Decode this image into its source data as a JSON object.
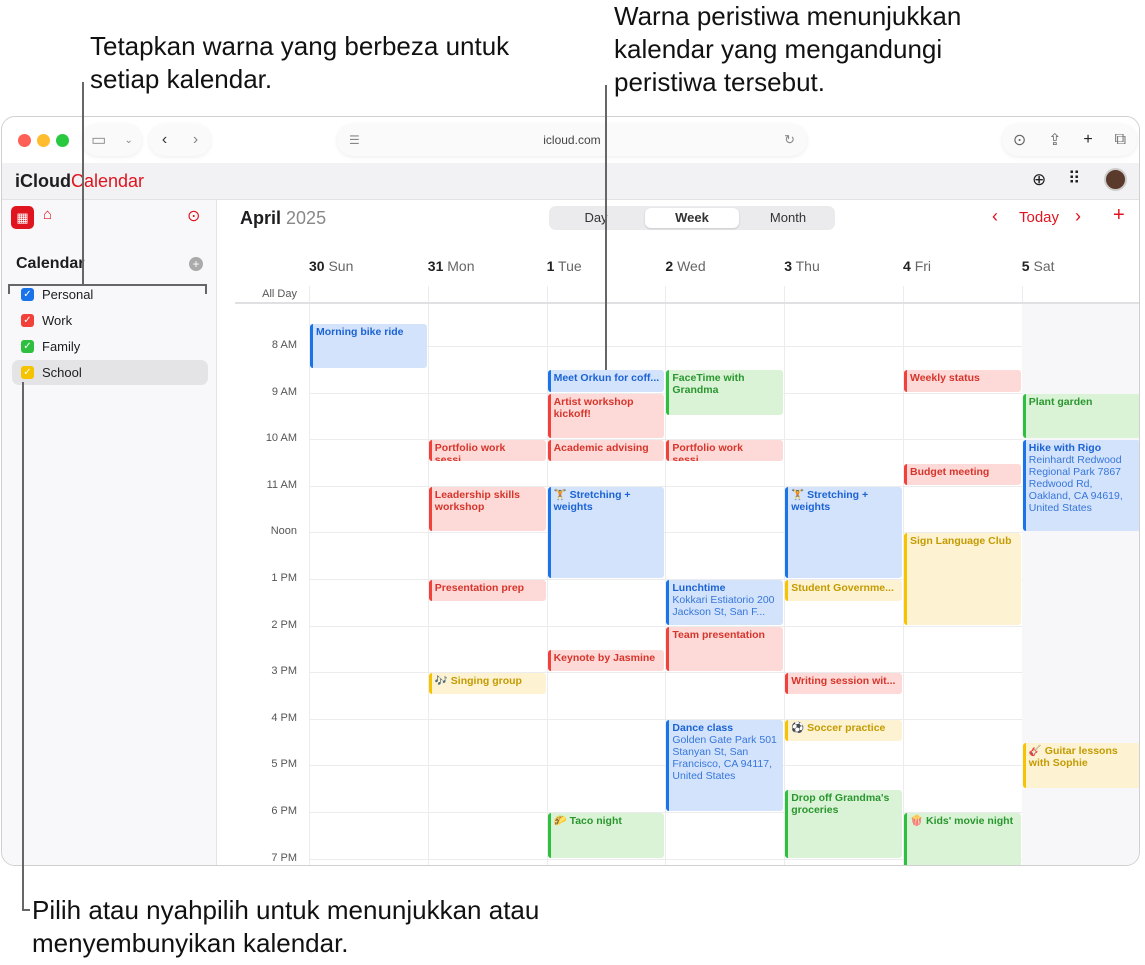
{
  "annotations": {
    "top_left": "Tetapkan warna yang berbeza untuk setiap kalendar.",
    "top_right": "Warna peristiwa menunjukkan kalendar yang mengandungi peristiwa tersebut.",
    "bottom": "Pilih atau nyahpilih untuk menunjukkan atau menyembunyikan kalendar."
  },
  "browser": {
    "url": "icloud.com"
  },
  "app": {
    "brand": "iCloud",
    "name": "Calendar"
  },
  "sidebar": {
    "heading": "Calendar",
    "calendars": [
      {
        "label": "Personal",
        "color": "#1a73e8",
        "checked": true
      },
      {
        "label": "Work",
        "color": "#f2413a",
        "checked": true
      },
      {
        "label": "Family",
        "color": "#2fbf3f",
        "checked": true
      },
      {
        "label": "School",
        "color": "#f5c300",
        "checked": true,
        "selected": true
      }
    ]
  },
  "header": {
    "month": "April",
    "year": "2025",
    "views": [
      "Day",
      "Week",
      "Month"
    ],
    "active_view": "Week",
    "today": "Today"
  },
  "days": [
    {
      "num": "30",
      "name": "Sun"
    },
    {
      "num": "31",
      "name": "Mon"
    },
    {
      "num": "1",
      "name": "Tue"
    },
    {
      "num": "2",
      "name": "Wed"
    },
    {
      "num": "3",
      "name": "Thu"
    },
    {
      "num": "4",
      "name": "Fri"
    },
    {
      "num": "5",
      "name": "Sat"
    }
  ],
  "all_day_label": "All Day",
  "hours": [
    "8 AM",
    "9 AM",
    "10 AM",
    "11 AM",
    "Noon",
    "1 PM",
    "2 PM",
    "3 PM",
    "4 PM",
    "5 PM",
    "6 PM",
    "7 PM"
  ],
  "colors": {
    "blue": {
      "fg": "#1b63d4",
      "bg": "#d3e3fc",
      "bar": "#1a73e8"
    },
    "red": {
      "fg": "#d6352b",
      "bg": "#fdd9d7",
      "bar": "#f2413a"
    },
    "green": {
      "fg": "#2a962e",
      "bg": "#daf3d7",
      "bar": "#2fbf3f"
    },
    "yellow": {
      "fg": "#c49b00",
      "bg": "#fdf2d2",
      "bar": "#f5c300"
    }
  },
  "events": [
    {
      "day": 0,
      "start": 7.5,
      "end": 8.5,
      "cal": "blue",
      "title": "Morning bike ride"
    },
    {
      "day": 2,
      "start": 8.5,
      "end": 9,
      "cal": "blue",
      "title": "Meet Orkun for coff..."
    },
    {
      "day": 2,
      "start": 9,
      "end": 10,
      "cal": "red",
      "title": "Artist workshop kickoff!"
    },
    {
      "day": 2,
      "start": 10,
      "end": 10.5,
      "cal": "red",
      "title": "Academic advising"
    },
    {
      "day": 1,
      "start": 10,
      "end": 10.5,
      "cal": "red",
      "title": "Portfolio work sessi..."
    },
    {
      "day": 3,
      "start": 10,
      "end": 10.5,
      "cal": "red",
      "title": "Portfolio work sessi..."
    },
    {
      "day": 3,
      "start": 8.5,
      "end": 9.5,
      "cal": "green",
      "title": "FaceTime with Grandma"
    },
    {
      "day": 5,
      "start": 8.5,
      "end": 9,
      "cal": "red",
      "title": "Weekly status"
    },
    {
      "day": 6,
      "start": 9,
      "end": 10,
      "cal": "green",
      "title": "Plant garden"
    },
    {
      "day": 6,
      "start": 10,
      "end": 12,
      "cal": "blue",
      "title": "Hike with Rigo",
      "sub": "Reinhardt Redwood Regional Park 7867 Redwood Rd, Oakland, CA 94619, United States"
    },
    {
      "day": 5,
      "start": 10.5,
      "end": 11,
      "cal": "red",
      "title": "Budget meeting"
    },
    {
      "day": 1,
      "start": 11,
      "end": 12,
      "cal": "red",
      "title": "Leadership skills workshop"
    },
    {
      "day": 2,
      "start": 11,
      "end": 13,
      "cal": "blue",
      "title": "🏋️ Stretching + weights"
    },
    {
      "day": 4,
      "start": 11,
      "end": 13,
      "cal": "blue",
      "title": "🏋️ Stretching + weights"
    },
    {
      "day": 5,
      "start": 12,
      "end": 14,
      "cal": "yellow",
      "title": "Sign Language Club"
    },
    {
      "day": 1,
      "start": 13,
      "end": 13.5,
      "cal": "red",
      "title": "Presentation prep"
    },
    {
      "day": 3,
      "start": 13,
      "end": 14,
      "cal": "blue",
      "title": "Lunchtime",
      "sub": "Kokkari Estiatorio 200 Jackson St, San F..."
    },
    {
      "day": 4,
      "start": 13,
      "end": 13.5,
      "cal": "yellow",
      "title": "Student Governme..."
    },
    {
      "day": 3,
      "start": 14,
      "end": 15,
      "cal": "red",
      "title": "Team presentation"
    },
    {
      "day": 2,
      "start": 14.5,
      "end": 15,
      "cal": "red",
      "title": "Keynote by Jasmine"
    },
    {
      "day": 1,
      "start": 15,
      "end": 15.5,
      "cal": "yellow",
      "title": "🎶 Singing group"
    },
    {
      "day": 4,
      "start": 15,
      "end": 15.5,
      "cal": "red",
      "title": "Writing session wit..."
    },
    {
      "day": 3,
      "start": 16,
      "end": 18,
      "cal": "blue",
      "title": "Dance class",
      "sub": "Golden Gate Park 501 Stanyan St, San Francisco, CA  94117, United States"
    },
    {
      "day": 4,
      "start": 16,
      "end": 16.5,
      "cal": "yellow",
      "title": "⚽ Soccer practice"
    },
    {
      "day": 6,
      "start": 16.5,
      "end": 17.5,
      "cal": "yellow",
      "title": "🎸 Guitar lessons with Sophie"
    },
    {
      "day": 4,
      "start": 17.5,
      "end": 19,
      "cal": "green",
      "title": "Drop off Grandma's groceries"
    },
    {
      "day": 2,
      "start": 18,
      "end": 19,
      "cal": "green",
      "title": "🌮 Taco night"
    },
    {
      "day": 5,
      "start": 18,
      "end": 19.5,
      "cal": "green",
      "title": "🍿 Kids' movie night"
    }
  ]
}
